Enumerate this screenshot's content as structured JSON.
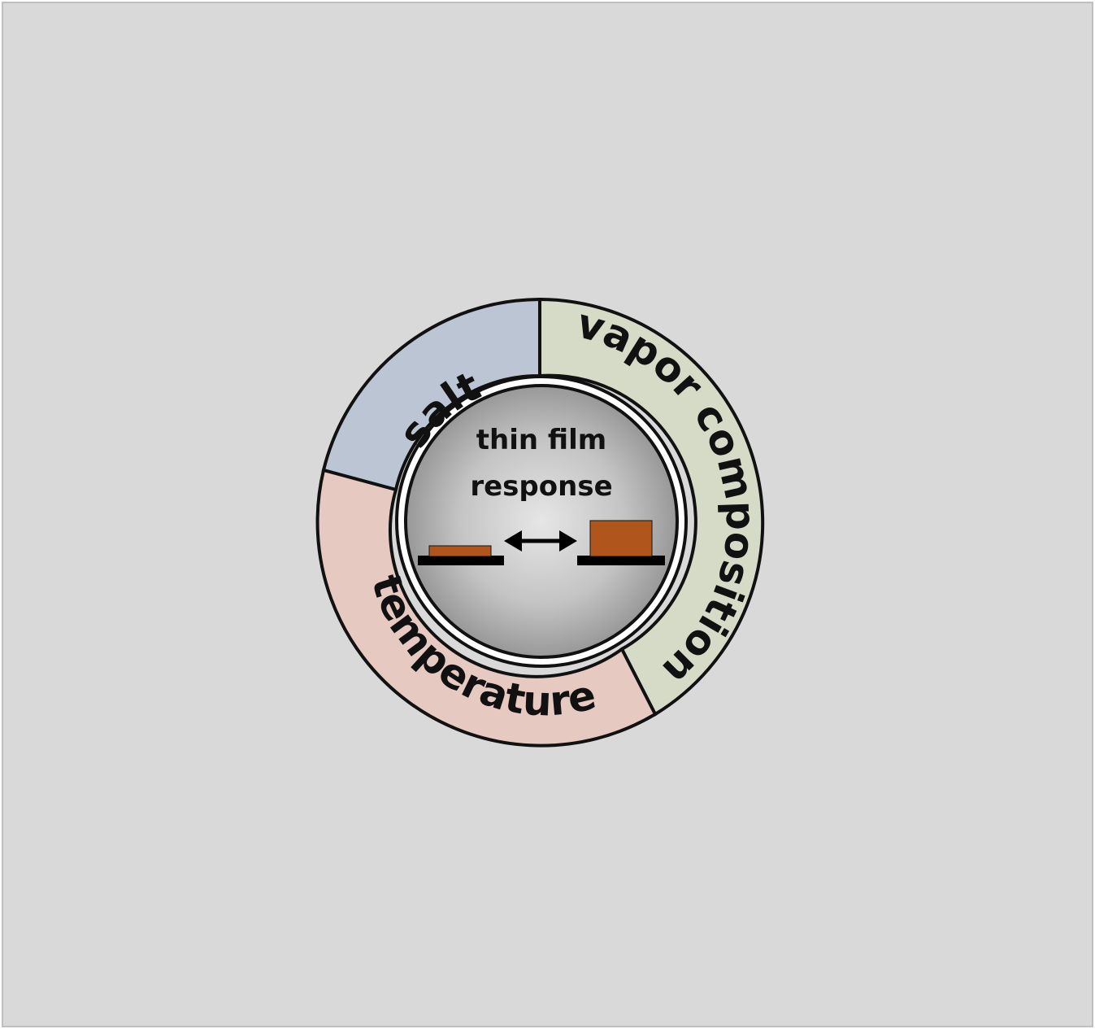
{
  "diagram": {
    "segments": [
      {
        "label": "salt",
        "color": "#bcc5d3"
      },
      {
        "label": "vapor composition",
        "color": "#d5dbc6"
      },
      {
        "label": "temperature",
        "color": "#e6c9c0"
      }
    ],
    "center": {
      "line1": "thin film",
      "line2": "response"
    },
    "colors": {
      "film": "#b0561c",
      "substrate": "#000000",
      "background": "#d9d9d9",
      "outline": "#111111"
    }
  }
}
